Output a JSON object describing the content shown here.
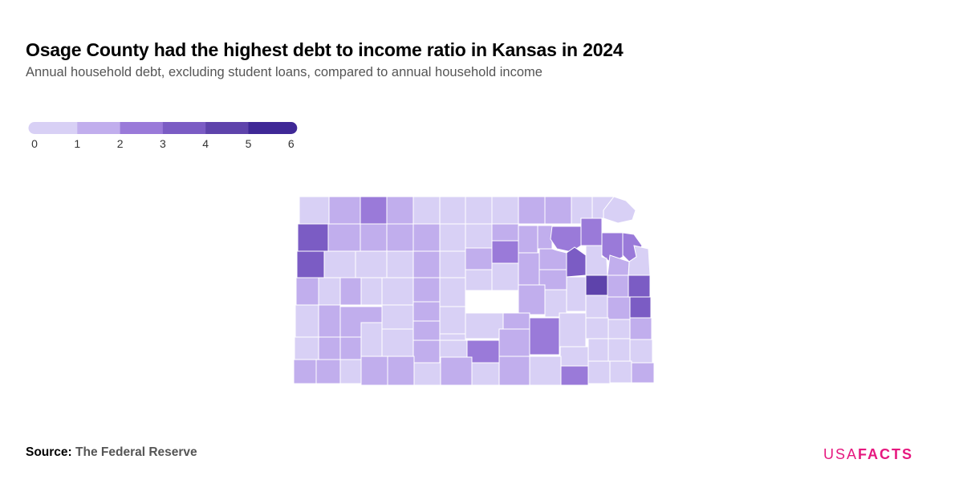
{
  "header": {
    "title": "Osage County had the highest debt to income ratio in Kansas in 2024",
    "subtitle": "Annual household debt, excluding student loans, compared to annual household income"
  },
  "legend": {
    "ticks": [
      "0",
      "1",
      "2",
      "3",
      "4",
      "5",
      "6"
    ],
    "colors": [
      "#d8d0f5",
      "#c1aeed",
      "#9a7ad9",
      "#7b5cc4",
      "#5e43ab",
      "#3f2896"
    ]
  },
  "map": {
    "region": "Kansas",
    "border_color": "#ffffff"
  },
  "footer": {
    "source_label": "Source:",
    "source_name": "The Federal Reserve",
    "brand_part1": "USA",
    "brand_part2": "FACTS"
  }
}
